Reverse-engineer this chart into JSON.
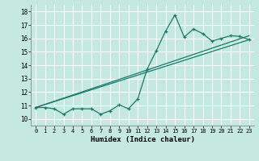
{
  "xlabel": "Humidex (Indice chaleur)",
  "xlim": [
    -0.5,
    23.5
  ],
  "ylim": [
    9.5,
    18.5
  ],
  "xticks": [
    0,
    1,
    2,
    3,
    4,
    5,
    6,
    7,
    8,
    9,
    10,
    11,
    12,
    13,
    14,
    15,
    16,
    17,
    18,
    19,
    20,
    21,
    22,
    23
  ],
  "yticks": [
    10,
    11,
    12,
    13,
    14,
    15,
    16,
    17,
    18
  ],
  "bg_color": "#c5e8e0",
  "line_color": "#1a7a6a",
  "grid_color": "#ffffff",
  "series1_x": [
    0,
    1,
    2,
    3,
    4,
    5,
    6,
    7,
    8,
    9,
    10,
    11,
    12,
    13,
    14,
    15,
    16,
    17,
    18,
    19,
    20,
    21,
    22,
    23
  ],
  "series1_y": [
    10.85,
    10.85,
    10.75,
    10.35,
    10.75,
    10.75,
    10.75,
    10.35,
    10.6,
    11.05,
    10.75,
    11.5,
    13.7,
    15.1,
    16.55,
    17.75,
    16.1,
    16.7,
    16.35,
    15.8,
    16.0,
    16.2,
    16.15,
    15.9
  ],
  "trend1_x": [
    0,
    23
  ],
  "trend1_y": [
    10.85,
    16.2
  ],
  "trend2_x": [
    0,
    23
  ],
  "trend2_y": [
    10.85,
    15.9
  ]
}
